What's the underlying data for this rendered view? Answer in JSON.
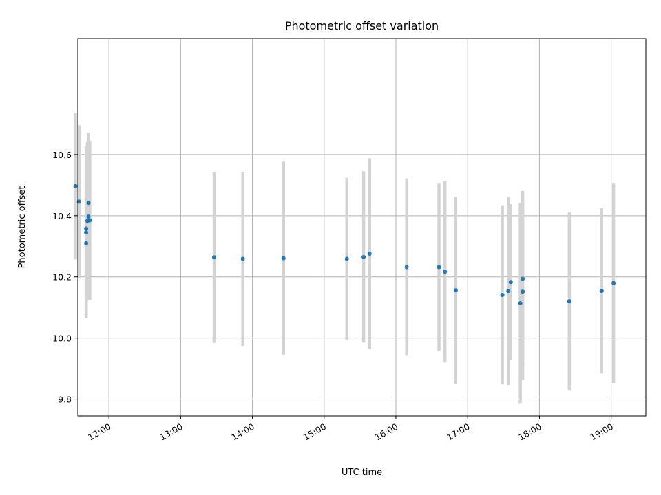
{
  "chart_data": {
    "type": "scatter",
    "title": "Photometric offset variation",
    "xlabel": "UTC time",
    "ylabel": "Photometric offset",
    "grid": true,
    "xlim": [
      "11:34",
      "19:29"
    ],
    "ylim": [
      9.745,
      10.98
    ],
    "xticks": [
      "12:00",
      "13:00",
      "14:00",
      "15:00",
      "16:00",
      "17:00",
      "18:00",
      "19:00"
    ],
    "yticks": [
      9.8,
      10.0,
      10.2,
      10.4,
      10.6
    ],
    "colors": {
      "point": "#1f77b4",
      "errorbar": "#d3d3d3",
      "grid": "#b0b0b0"
    },
    "series": [
      {
        "points": [
          {
            "x": "11:32",
            "y": 10.497,
            "err": 0.24
          },
          {
            "x": "11:35",
            "y": 10.446,
            "err": 0.25
          },
          {
            "x": "11:41",
            "y": 10.31,
            "err": 0.245
          },
          {
            "x": "11:41",
            "y": 10.345,
            "err": 0.28
          },
          {
            "x": "11:41",
            "y": 10.358,
            "err": 0.27
          },
          {
            "x": "11:42",
            "y": 10.383,
            "err": 0.26
          },
          {
            "x": "11:43",
            "y": 10.442,
            "err": 0.23
          },
          {
            "x": "11:43",
            "y": 10.397,
            "err": 0.25
          },
          {
            "x": "11:44",
            "y": 10.385,
            "err": 0.26
          },
          {
            "x": "13:28",
            "y": 10.264,
            "err": 0.28
          },
          {
            "x": "13:52",
            "y": 10.259,
            "err": 0.285
          },
          {
            "x": "14:26",
            "y": 10.261,
            "err": 0.318
          },
          {
            "x": "15:19",
            "y": 10.259,
            "err": 0.265
          },
          {
            "x": "15:33",
            "y": 10.265,
            "err": 0.28
          },
          {
            "x": "15:38",
            "y": 10.276,
            "err": 0.312
          },
          {
            "x": "16:09",
            "y": 10.232,
            "err": 0.29
          },
          {
            "x": "16:36",
            "y": 10.232,
            "err": 0.275
          },
          {
            "x": "16:41",
            "y": 10.217,
            "err": 0.297
          },
          {
            "x": "16:50",
            "y": 10.156,
            "err": 0.305
          },
          {
            "x": "17:29",
            "y": 10.141,
            "err": 0.293
          },
          {
            "x": "17:34",
            "y": 10.154,
            "err": 0.308
          },
          {
            "x": "17:36",
            "y": 10.183,
            "err": 0.255
          },
          {
            "x": "17:44",
            "y": 10.114,
            "err": 0.327
          },
          {
            "x": "17:46",
            "y": 10.152,
            "err": 0.29
          },
          {
            "x": "17:46",
            "y": 10.194,
            "err": 0.287
          },
          {
            "x": "18:25",
            "y": 10.12,
            "err": 0.29
          },
          {
            "x": "18:52",
            "y": 10.154,
            "err": 0.27
          },
          {
            "x": "19:02",
            "y": 10.18,
            "err": 0.327
          }
        ]
      }
    ]
  }
}
